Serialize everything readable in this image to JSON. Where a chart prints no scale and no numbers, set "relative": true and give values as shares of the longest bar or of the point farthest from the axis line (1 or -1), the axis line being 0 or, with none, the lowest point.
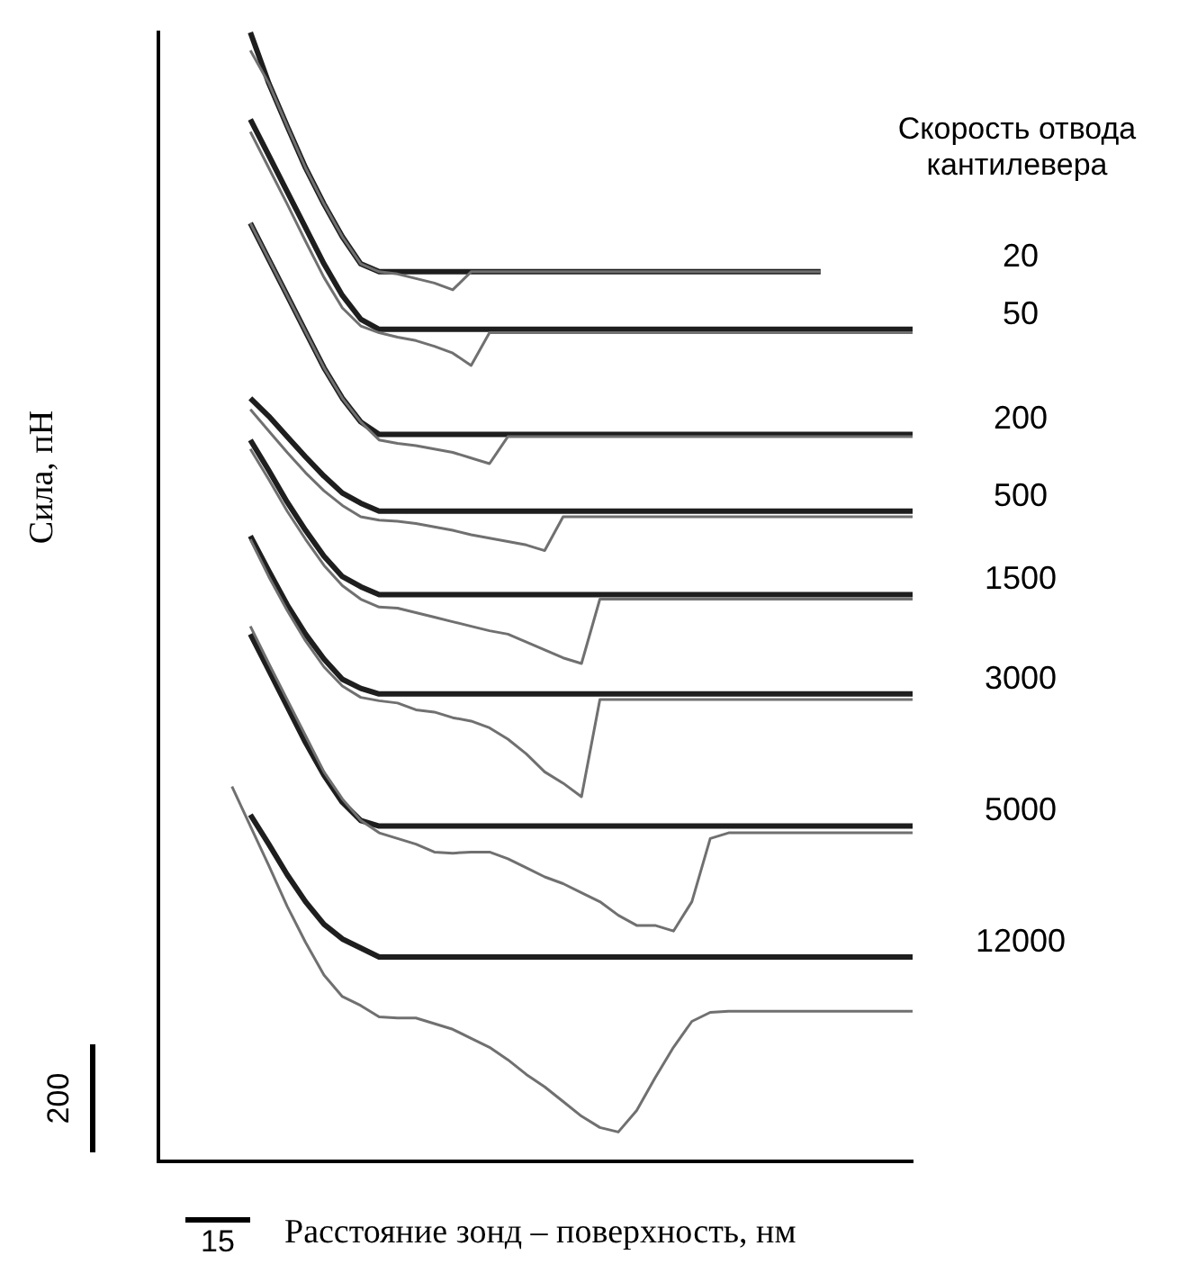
{
  "chart_data": {
    "type": "line",
    "relative": true,
    "ylabel": "Сила, пН",
    "xlabel": "Расстояние зонд – поверхность, нм",
    "legend_title": "Скорость отвода кантилевера",
    "annotations": [
      "200",
      "15"
    ],
    "categories": [
      null,
      null,
      null,
      null,
      null,
      null,
      null,
      null,
      null,
      null,
      null,
      null,
      null,
      null,
      null,
      null,
      null,
      null,
      null,
      null,
      null,
      null,
      null,
      null,
      null,
      null,
      null,
      null,
      null,
      null,
      null,
      null,
      null,
      null,
      null,
      null,
      null,
      null,
      null,
      null,
      null,
      null
    ],
    "series": [
      {
        "color": "#707070",
        "values": [
          null,
          null,
          null,
          null,
          null,
          0.984,
          0.955,
          0.917,
          0.88,
          0.848,
          0.819,
          0.795,
          0.788,
          0.786,
          0.782,
          0.778,
          0.772,
          0.788,
          0.788,
          0.788,
          0.788,
          0.788,
          0.788,
          0.788,
          0.788,
          0.788,
          0.788,
          0.788,
          0.788,
          0.788,
          0.788,
          0.788,
          0.788,
          0.788,
          0.788,
          0.788,
          0.788,
          null,
          null,
          null,
          null,
          null
        ]
      },
      {
        "name": "20",
        "color": "#1e1e1e",
        "values": [
          null,
          null,
          null,
          null,
          null,
          1.0,
          0.955,
          0.917,
          0.88,
          0.848,
          0.819,
          0.795,
          0.788,
          0.788,
          0.788,
          0.788,
          0.788,
          0.788,
          0.788,
          0.788,
          0.788,
          0.788,
          0.788,
          0.788,
          0.788,
          0.788,
          0.788,
          0.788,
          0.788,
          0.788,
          0.788,
          0.788,
          0.788,
          0.788,
          0.788,
          0.788,
          0.788,
          null,
          null,
          null,
          null,
          null
        ]
      },
      {
        "color": "#707070",
        "values": [
          null,
          null,
          null,
          null,
          null,
          0.912,
          0.88,
          0.848,
          0.815,
          0.783,
          0.756,
          0.74,
          0.734,
          0.73,
          0.727,
          0.722,
          0.716,
          0.705,
          0.734,
          0.734,
          0.734,
          0.734,
          0.734,
          0.734,
          0.734,
          0.734,
          0.734,
          0.734,
          0.734,
          0.734,
          0.734,
          0.734,
          0.734,
          0.734,
          0.734,
          0.734,
          0.734,
          0.734,
          0.734,
          0.734,
          0.734,
          0.734
        ]
      },
      {
        "name": "50",
        "color": "#1e1e1e",
        "values": [
          null,
          null,
          null,
          null,
          null,
          0.923,
          0.891,
          0.859,
          0.827,
          0.795,
          0.767,
          0.746,
          0.737,
          0.737,
          0.737,
          0.737,
          0.737,
          0.737,
          0.737,
          0.737,
          0.737,
          0.737,
          0.737,
          0.737,
          0.737,
          0.737,
          0.737,
          0.737,
          0.737,
          0.737,
          0.737,
          0.737,
          0.737,
          0.737,
          0.737,
          0.737,
          0.737,
          0.737,
          0.737,
          0.737,
          0.737,
          0.737
        ]
      },
      {
        "color": "#707070",
        "values": [
          null,
          null,
          null,
          null,
          null,
          0.831,
          0.799,
          0.767,
          0.735,
          0.703,
          0.676,
          0.655,
          0.639,
          0.636,
          0.634,
          0.631,
          0.628,
          0.623,
          0.618,
          0.642,
          0.642,
          0.642,
          0.642,
          0.642,
          0.642,
          0.642,
          0.642,
          0.642,
          0.642,
          0.642,
          0.642,
          0.642,
          0.642,
          0.642,
          0.642,
          0.642,
          0.642,
          0.642,
          0.642,
          0.642,
          0.642,
          0.642
        ]
      },
      {
        "name": "200",
        "color": "#1e1e1e",
        "values": [
          null,
          null,
          null,
          null,
          null,
          0.831,
          0.799,
          0.767,
          0.735,
          0.703,
          0.676,
          0.655,
          0.644,
          0.644,
          0.644,
          0.644,
          0.644,
          0.644,
          0.644,
          0.644,
          0.644,
          0.644,
          0.644,
          0.644,
          0.644,
          0.644,
          0.644,
          0.644,
          0.644,
          0.644,
          0.644,
          0.644,
          0.644,
          0.644,
          0.644,
          0.644,
          0.644,
          0.644,
          0.644,
          0.644,
          0.644,
          0.644
        ]
      },
      {
        "color": "#707070",
        "values": [
          null,
          null,
          null,
          null,
          null,
          0.666,
          0.647,
          0.628,
          0.61,
          0.594,
          0.581,
          0.571,
          0.568,
          0.567,
          0.565,
          0.562,
          0.559,
          0.555,
          0.552,
          0.549,
          0.546,
          0.541,
          0.571,
          0.571,
          0.571,
          0.571,
          0.571,
          0.571,
          0.571,
          0.571,
          0.571,
          0.571,
          0.571,
          0.571,
          0.571,
          0.571,
          0.571,
          0.571,
          0.571,
          0.571,
          0.571,
          0.571
        ]
      },
      {
        "name": "500",
        "color": "#1e1e1e",
        "values": [
          null,
          null,
          null,
          null,
          null,
          0.676,
          0.66,
          0.642,
          0.624,
          0.607,
          0.592,
          0.583,
          0.576,
          0.576,
          0.576,
          0.576,
          0.576,
          0.576,
          0.576,
          0.576,
          0.576,
          0.576,
          0.576,
          0.576,
          0.576,
          0.576,
          0.576,
          0.576,
          0.576,
          0.576,
          0.576,
          0.576,
          0.576,
          0.576,
          0.576,
          0.576,
          0.576,
          0.576,
          0.576,
          0.576,
          0.576,
          0.576
        ]
      },
      {
        "color": "#707070",
        "values": [
          null,
          null,
          null,
          null,
          null,
          0.631,
          0.604,
          0.576,
          0.551,
          0.528,
          0.51,
          0.498,
          0.491,
          0.49,
          0.486,
          0.482,
          0.478,
          0.474,
          0.47,
          0.467,
          0.46,
          0.453,
          0.446,
          0.441,
          0.498,
          0.498,
          0.498,
          0.498,
          0.498,
          0.498,
          0.498,
          0.498,
          0.498,
          0.498,
          0.498,
          0.498,
          0.498,
          0.498,
          0.498,
          0.498,
          0.498,
          0.498
        ]
      },
      {
        "name": "1500",
        "color": "#1e1e1e",
        "values": [
          null,
          null,
          null,
          null,
          null,
          0.639,
          0.612,
          0.584,
          0.559,
          0.536,
          0.518,
          0.509,
          0.502,
          0.502,
          0.502,
          0.502,
          0.502,
          0.502,
          0.502,
          0.502,
          0.502,
          0.502,
          0.502,
          0.502,
          0.502,
          0.502,
          0.502,
          0.502,
          0.502,
          0.502,
          0.502,
          0.502,
          0.502,
          0.502,
          0.502,
          0.502,
          0.502,
          0.502,
          0.502,
          0.502,
          0.502,
          0.502
        ]
      },
      {
        "color": "#707070",
        "values": [
          null,
          null,
          null,
          null,
          null,
          0.551,
          0.518,
          0.488,
          0.461,
          0.438,
          0.421,
          0.411,
          0.408,
          0.406,
          0.4,
          0.398,
          0.393,
          0.39,
          0.384,
          0.374,
          0.361,
          0.345,
          0.335,
          0.323,
          0.409,
          0.409,
          0.409,
          0.409,
          0.409,
          0.409,
          0.409,
          0.409,
          0.409,
          0.409,
          0.409,
          0.409,
          0.409,
          0.409,
          0.409,
          0.409,
          0.409,
          0.409
        ]
      },
      {
        "name": "3000",
        "color": "#1e1e1e",
        "values": [
          null,
          null,
          null,
          null,
          null,
          0.554,
          0.523,
          0.493,
          0.467,
          0.445,
          0.427,
          0.419,
          0.414,
          0.414,
          0.414,
          0.414,
          0.414,
          0.414,
          0.414,
          0.414,
          0.414,
          0.414,
          0.414,
          0.414,
          0.414,
          0.414,
          0.414,
          0.414,
          0.414,
          0.414,
          0.414,
          0.414,
          0.414,
          0.414,
          0.414,
          0.414,
          0.414,
          0.414,
          0.414,
          0.414,
          0.414,
          0.414
        ]
      },
      {
        "color": "#707070",
        "values": [
          null,
          null,
          null,
          null,
          null,
          0.474,
          0.441,
          0.409,
          0.377,
          0.345,
          0.321,
          0.302,
          0.291,
          0.286,
          0.281,
          0.274,
          0.273,
          0.274,
          0.274,
          0.268,
          0.26,
          0.252,
          0.246,
          0.238,
          0.23,
          0.218,
          0.209,
          0.209,
          0.204,
          0.23,
          0.286,
          0.291,
          0.291,
          0.291,
          0.291,
          0.291,
          0.291,
          0.291,
          0.291,
          0.291,
          0.291,
          0.291
        ]
      },
      {
        "name": "5000",
        "color": "#1e1e1e",
        "values": [
          null,
          null,
          null,
          null,
          null,
          0.467,
          0.435,
          0.403,
          0.371,
          0.342,
          0.318,
          0.302,
          0.297,
          0.297,
          0.297,
          0.297,
          0.297,
          0.297,
          0.297,
          0.297,
          0.297,
          0.297,
          0.297,
          0.297,
          0.297,
          0.297,
          0.297,
          0.297,
          0.297,
          0.297,
          0.297,
          0.297,
          0.297,
          0.297,
          0.297,
          0.297,
          0.297,
          0.297,
          0.297,
          0.297,
          0.297,
          0.297
        ]
      },
      {
        "color": "#707070",
        "values": [
          null,
          null,
          null,
          null,
          0.332,
          0.297,
          0.262,
          0.226,
          0.194,
          0.165,
          0.146,
          0.138,
          0.128,
          0.127,
          0.127,
          0.122,
          0.117,
          0.109,
          0.101,
          0.09,
          0.077,
          0.066,
          0.053,
          0.04,
          0.03,
          0.026,
          0.045,
          0.074,
          0.101,
          0.124,
          0.132,
          0.133,
          0.133,
          0.133,
          0.133,
          0.133,
          0.133,
          0.133,
          0.133,
          0.133,
          0.133,
          0.133
        ]
      },
      {
        "name": "12000",
        "color": "#1e1e1e",
        "values": [
          null,
          null,
          null,
          null,
          null,
          0.307,
          0.281,
          0.254,
          0.23,
          0.21,
          0.197,
          0.189,
          0.181,
          0.181,
          0.181,
          0.181,
          0.181,
          0.181,
          0.181,
          0.181,
          0.181,
          0.181,
          0.181,
          0.181,
          0.181,
          0.181,
          0.181,
          0.181,
          0.181,
          0.181,
          0.181,
          0.181,
          0.181,
          0.181,
          0.181,
          0.181,
          0.181,
          0.181,
          0.181,
          0.181,
          0.181,
          0.181
        ]
      }
    ]
  }
}
